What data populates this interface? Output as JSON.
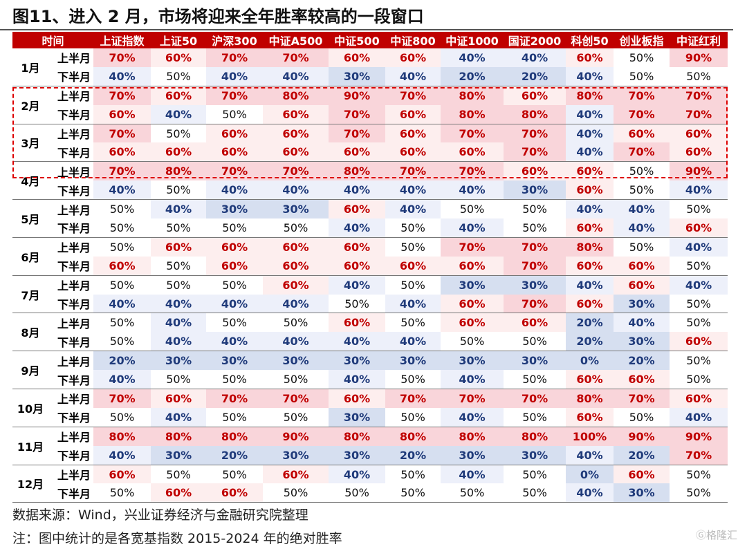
{
  "title": "图11、进入 2 月，市场将迎来全年胜率较高的一段窗口",
  "footer": {
    "source": "数据来源：Wind，兴业证券经济与金融研究院整理",
    "note": "注：图中统计的是各宽基指数 2015-2024 年的绝对胜率"
  },
  "watermark": "格隆汇",
  "colors": {
    "header": "#c00000",
    "high_text": "#c00000",
    "low_text": "#1f3a7a",
    "highlight_box": "#dd0000"
  },
  "chart_data": {
    "type": "heatmap",
    "corner_label": "时间",
    "columns": [
      "上证指数",
      "上证50",
      "沪深300",
      "中证A500",
      "中证500",
      "中证800",
      "中证1000",
      "国证2000",
      "科创50",
      "创业板指",
      "中证红利"
    ],
    "halves": [
      "上半月",
      "下半月"
    ],
    "unit": "%",
    "highlighted_range": [
      "2月 上半月",
      "4月 上半月"
    ],
    "months": [
      {
        "month": "1月",
        "rows": [
          [
            70,
            60,
            70,
            70,
            60,
            60,
            40,
            40,
            60,
            50,
            90
          ],
          [
            40,
            50,
            40,
            40,
            30,
            40,
            20,
            20,
            40,
            50,
            50
          ]
        ]
      },
      {
        "month": "2月",
        "rows": [
          [
            70,
            60,
            70,
            80,
            90,
            70,
            80,
            60,
            80,
            70,
            70
          ],
          [
            60,
            40,
            50,
            60,
            70,
            60,
            80,
            80,
            40,
            70,
            70
          ]
        ]
      },
      {
        "month": "3月",
        "rows": [
          [
            70,
            50,
            60,
            60,
            70,
            60,
            70,
            70,
            40,
            60,
            60
          ],
          [
            60,
            60,
            60,
            60,
            60,
            60,
            60,
            70,
            40,
            70,
            60
          ]
        ]
      },
      {
        "month": "4月",
        "rows": [
          [
            70,
            80,
            70,
            70,
            80,
            70,
            70,
            60,
            60,
            50,
            90
          ],
          [
            40,
            50,
            40,
            40,
            40,
            40,
            40,
            30,
            60,
            50,
            40
          ]
        ]
      },
      {
        "month": "5月",
        "rows": [
          [
            50,
            40,
            30,
            30,
            60,
            40,
            50,
            50,
            40,
            40,
            50
          ],
          [
            50,
            50,
            50,
            50,
            40,
            50,
            40,
            50,
            60,
            40,
            60
          ]
        ]
      },
      {
        "month": "6月",
        "rows": [
          [
            50,
            60,
            60,
            60,
            60,
            50,
            70,
            70,
            80,
            50,
            40
          ],
          [
            60,
            50,
            60,
            60,
            60,
            60,
            60,
            70,
            60,
            60,
            50
          ]
        ]
      },
      {
        "month": "7月",
        "rows": [
          [
            50,
            50,
            50,
            60,
            40,
            50,
            30,
            30,
            40,
            60,
            40
          ],
          [
            40,
            40,
            40,
            40,
            50,
            40,
            60,
            70,
            60,
            30,
            50
          ]
        ]
      },
      {
        "month": "8月",
        "rows": [
          [
            50,
            40,
            50,
            50,
            60,
            50,
            60,
            60,
            20,
            40,
            50
          ],
          [
            50,
            40,
            40,
            40,
            40,
            40,
            50,
            50,
            20,
            30,
            60
          ]
        ]
      },
      {
        "month": "9月",
        "rows": [
          [
            20,
            30,
            30,
            30,
            30,
            30,
            30,
            30,
            0,
            20,
            50
          ],
          [
            40,
            50,
            50,
            50,
            40,
            50,
            40,
            50,
            60,
            60,
            50
          ]
        ]
      },
      {
        "month": "10月",
        "rows": [
          [
            70,
            60,
            70,
            70,
            60,
            70,
            70,
            70,
            80,
            70,
            60
          ],
          [
            50,
            40,
            50,
            50,
            30,
            50,
            40,
            50,
            60,
            50,
            40
          ]
        ]
      },
      {
        "month": "11月",
        "rows": [
          [
            80,
            80,
            80,
            90,
            80,
            80,
            80,
            80,
            100,
            90,
            90
          ],
          [
            40,
            30,
            20,
            30,
            30,
            20,
            30,
            30,
            40,
            20,
            70
          ]
        ]
      },
      {
        "month": "12月",
        "rows": [
          [
            60,
            50,
            50,
            60,
            40,
            50,
            40,
            50,
            0,
            60,
            50
          ],
          [
            50,
            60,
            60,
            50,
            50,
            50,
            50,
            50,
            40,
            30,
            50
          ]
        ]
      }
    ]
  }
}
